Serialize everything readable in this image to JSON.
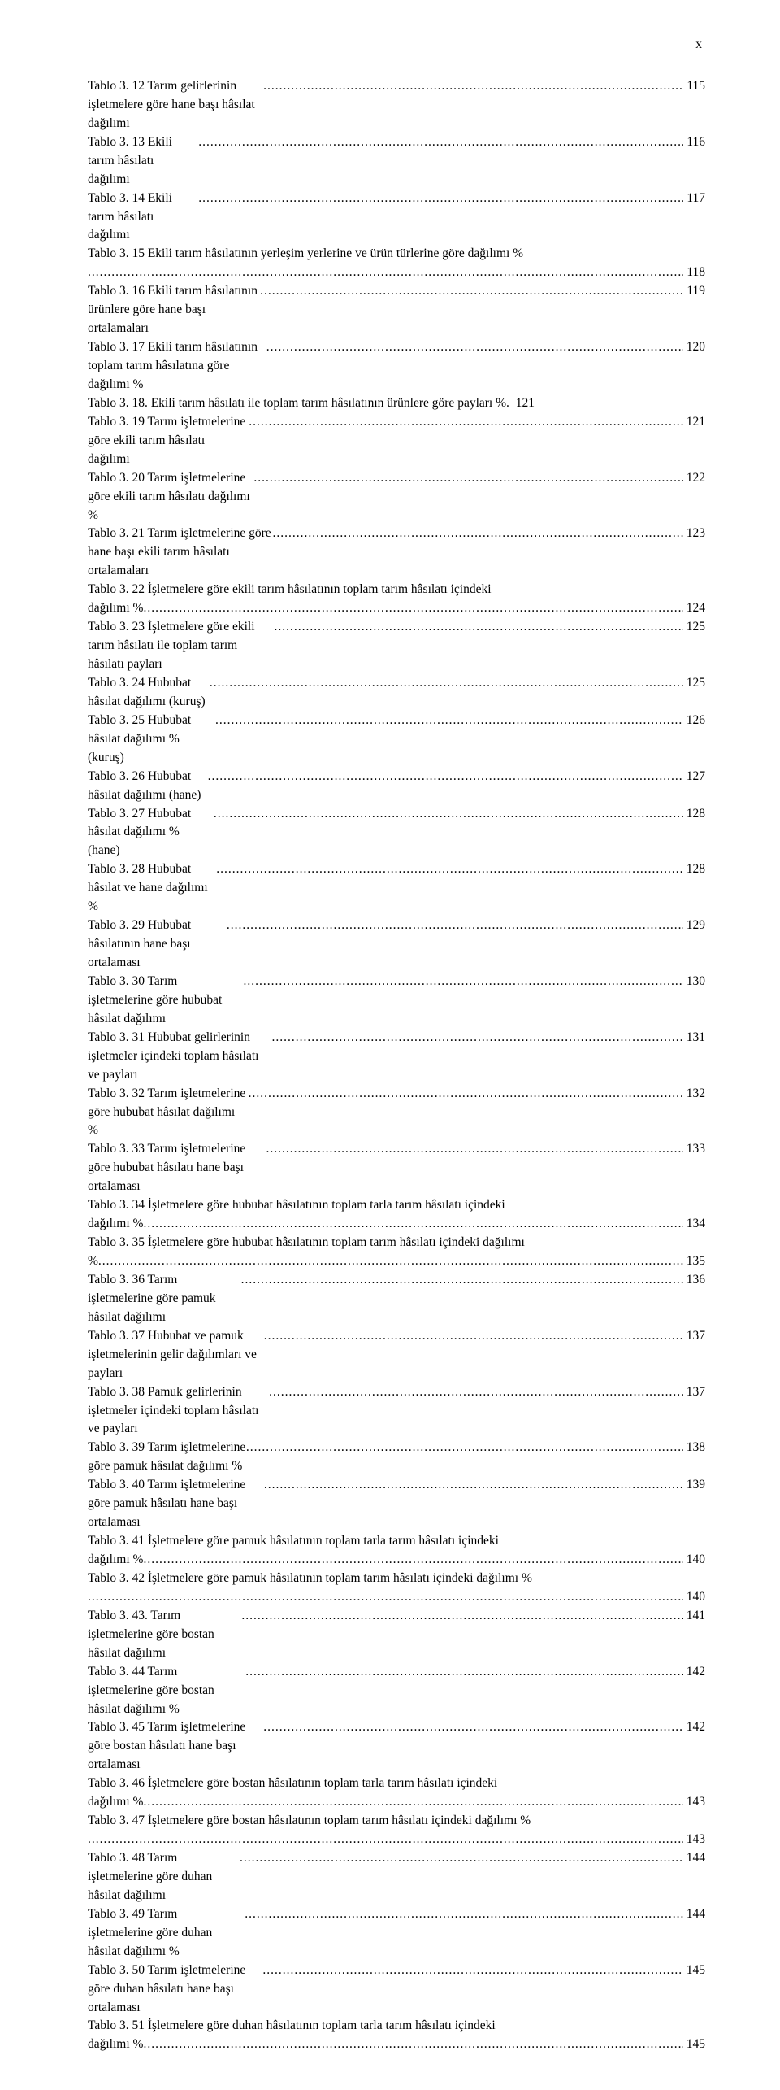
{
  "page_marker": "x",
  "entries": [
    {
      "text_head": "Tablo 3. 12 Tarım gelirlerinin işletmelere göre hane başı hâsılat dağılımı",
      "text_tail": "",
      "page": "115",
      "multi": false
    },
    {
      "text_head": "Tablo 3. 13 Ekili tarım hâsılatı dağılımı",
      "text_tail": "",
      "page": "116",
      "multi": false
    },
    {
      "text_head": "Tablo 3. 14 Ekili tarım hâsılatı dağılımı",
      "text_tail": "",
      "page": "117",
      "multi": false
    },
    {
      "text_head": "Tablo 3. 15 Ekili tarım hâsılatının yerleşim yerlerine ve ürün türlerine göre dağılımı %",
      "text_tail": "",
      "page": "118",
      "multi": true
    },
    {
      "text_head": "Tablo 3. 16 Ekili tarım hâsılatının ürünlere göre hane başı ortalamaları",
      "text_tail": "",
      "page": "119",
      "multi": false
    },
    {
      "text_head": "Tablo 3. 17 Ekili tarım hâsılatının toplam tarım hâsılatına göre dağılımı %",
      "text_tail": "",
      "page": "120",
      "multi": false
    },
    {
      "text_head": "Tablo 3. 18. Ekili tarım hâsılatı ile toplam tarım hâsılatının ürünlere göre payları %.",
      "text_tail": "",
      "page": "121",
      "multi": false,
      "noleader": true
    },
    {
      "text_head": "Tablo 3. 19 Tarım işletmelerine göre ekili tarım hâsılatı dağılımı",
      "text_tail": "",
      "page": "121",
      "multi": false
    },
    {
      "text_head": "Tablo 3. 20 Tarım işletmelerine göre ekili tarım hâsılatı dağılımı %",
      "text_tail": "",
      "page": "122",
      "multi": false
    },
    {
      "text_head": "Tablo 3. 21 Tarım işletmelerine göre hane başı ekili tarım hâsılatı ortalamaları",
      "text_tail": "",
      "page": "123",
      "multi": false
    },
    {
      "text_head": "Tablo 3. 22 İşletmelere göre ekili tarım hâsılatının toplam tarım hâsılatı içindeki",
      "text_tail": "dağılımı %",
      "page": "124",
      "multi": true
    },
    {
      "text_head": "Tablo 3. 23 İşletmelere göre ekili tarım hâsılatı ile toplam tarım hâsılatı payları",
      "text_tail": "",
      "page": "125",
      "multi": false
    },
    {
      "text_head": "Tablo 3. 24 Hububat hâsılat dağılımı (kuruş)",
      "text_tail": "",
      "page": "125",
      "multi": false
    },
    {
      "text_head": "Tablo 3. 25 Hububat hâsılat dağılımı % (kuruş)",
      "text_tail": "",
      "page": "126",
      "multi": false
    },
    {
      "text_head": "Tablo 3. 26 Hububat hâsılat dağılımı (hane)",
      "text_tail": "",
      "page": "127",
      "multi": false
    },
    {
      "text_head": "Tablo 3. 27 Hububat hâsılat dağılımı % (hane)",
      "text_tail": "",
      "page": "128",
      "multi": false
    },
    {
      "text_head": "Tablo 3. 28 Hububat hâsılat ve hane dağılımı %",
      "text_tail": "",
      "page": "128",
      "multi": false
    },
    {
      "text_head": "Tablo 3. 29 Hububat hâsılatının hane başı ortalaması",
      "text_tail": "",
      "page": "129",
      "multi": false
    },
    {
      "text_head": "Tablo 3. 30 Tarım işletmelerine göre hububat hâsılat dağılımı",
      "text_tail": "",
      "page": "130",
      "multi": false
    },
    {
      "text_head": "Tablo 3. 31 Hububat gelirlerinin işletmeler içindeki toplam hâsılatı ve payları",
      "text_tail": "",
      "page": "131",
      "multi": false
    },
    {
      "text_head": "Tablo 3. 32 Tarım işletmelerine göre hububat hâsılat dağılımı %",
      "text_tail": "",
      "page": "132",
      "multi": false
    },
    {
      "text_head": "Tablo 3. 33 Tarım işletmelerine göre hububat hâsılatı hane başı ortalaması",
      "text_tail": "",
      "page": "133",
      "multi": false
    },
    {
      "text_head": "Tablo 3. 34 İşletmelere göre hububat hâsılatının toplam tarla tarım hâsılatı içindeki",
      "text_tail": "dağılımı %",
      "page": "134",
      "multi": true
    },
    {
      "text_head": "Tablo 3. 35 İşletmelere göre hububat hâsılatının toplam tarım hâsılatı içindeki dağılımı",
      "text_tail": "%",
      "page": "135",
      "multi": true
    },
    {
      "text_head": "Tablo 3. 36 Tarım işletmelerine göre pamuk hâsılat dağılımı",
      "text_tail": "",
      "page": "136",
      "multi": false
    },
    {
      "text_head": "Tablo 3. 37 Hububat ve pamuk işletmelerinin gelir dağılımları ve payları",
      "text_tail": "",
      "page": "137",
      "multi": false
    },
    {
      "text_head": "Tablo 3. 38 Pamuk gelirlerinin işletmeler içindeki toplam hâsılatı ve payları",
      "text_tail": "",
      "page": "137",
      "multi": false
    },
    {
      "text_head": "Tablo 3. 39 Tarım işletmelerine göre pamuk hâsılat dağılımı %",
      "text_tail": "",
      "page": "138",
      "multi": false
    },
    {
      "text_head": "Tablo 3. 40 Tarım işletmelerine göre pamuk hâsılatı hane başı ortalaması",
      "text_tail": "",
      "page": "139",
      "multi": false
    },
    {
      "text_head": "Tablo 3. 41 İşletmelere göre pamuk hâsılatının toplam tarla tarım hâsılatı içindeki",
      "text_tail": "dağılımı %",
      "page": "140",
      "multi": true
    },
    {
      "text_head": "Tablo 3. 42 İşletmelere göre pamuk hâsılatının toplam tarım hâsılatı içindeki dağılımı %",
      "text_tail": "",
      "page": "140",
      "multi": true
    },
    {
      "text_head": "Tablo 3. 43. Tarım işletmelerine göre bostan hâsılat dağılımı",
      "text_tail": "",
      "page": "141",
      "multi": false
    },
    {
      "text_head": "Tablo 3. 44 Tarım işletmelerine göre bostan hâsılat dağılımı %",
      "text_tail": "",
      "page": "142",
      "multi": false
    },
    {
      "text_head": "Tablo 3. 45 Tarım işletmelerine göre bostan hâsılatı hane başı ortalaması",
      "text_tail": "",
      "page": "142",
      "multi": false
    },
    {
      "text_head": "Tablo 3. 46 İşletmelere göre bostan hâsılatının toplam tarla tarım hâsılatı içindeki",
      "text_tail": "dağılımı %",
      "page": "143",
      "multi": true
    },
    {
      "text_head": "Tablo 3. 47 İşletmelere göre bostan hâsılatının toplam tarım hâsılatı içindeki dağılımı %",
      "text_tail": "",
      "page": "143",
      "multi": true
    },
    {
      "text_head": "Tablo 3. 48 Tarım işletmelerine göre duhan hâsılat dağılımı",
      "text_tail": "",
      "page": "144",
      "multi": false
    },
    {
      "text_head": "Tablo 3. 49 Tarım işletmelerine göre duhan hâsılat dağılımı %",
      "text_tail": "",
      "page": "144",
      "multi": false
    },
    {
      "text_head": "Tablo 3. 50 Tarım işletmelerine göre duhan hâsılatı hane başı ortalaması",
      "text_tail": "",
      "page": "145",
      "multi": false
    },
    {
      "text_head": "Tablo 3. 51 İşletmelere göre duhan hâsılatının toplam tarla tarım hâsılatı içindeki",
      "text_tail": "dağılımı %",
      "page": "145",
      "multi": true
    }
  ]
}
